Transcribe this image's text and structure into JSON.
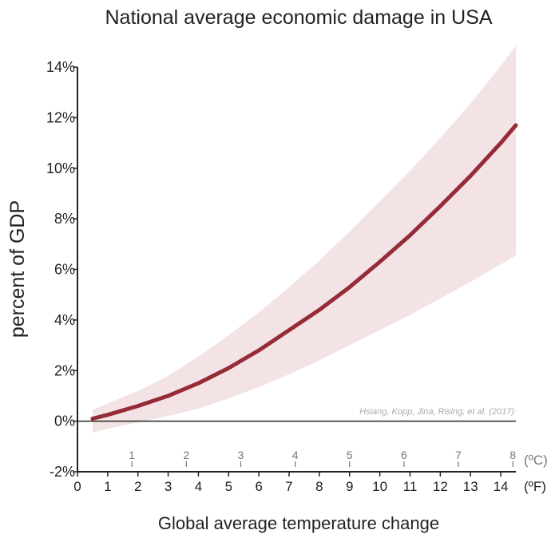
{
  "chart_data": {
    "type": "line",
    "title": "National average economic damage in USA",
    "ylabel": "percent of GDP",
    "xlabel": "Global average temperature change",
    "source": "Hsiang, Kopp, Jina, Rising, et al. (2017)",
    "ylim": [
      -2,
      14
    ],
    "xlim": [
      0,
      14.5
    ],
    "y_ticks": [
      -2,
      0,
      2,
      4,
      6,
      8,
      10,
      12,
      14
    ],
    "y_tick_labels": [
      "-2%",
      "0%",
      "2%",
      "4%",
      "6%",
      "8%",
      "10%",
      "12%",
      "14%"
    ],
    "x_ticks_F": [
      0,
      1,
      2,
      3,
      4,
      5,
      6,
      7,
      8,
      9,
      10,
      11,
      12,
      13,
      14
    ],
    "x_tick_labels_F": [
      "0",
      "1",
      "2",
      "3",
      "4",
      "5",
      "6",
      "7",
      "8",
      "9",
      "10",
      "11",
      "12",
      "13",
      "14"
    ],
    "unit_F": "(ºF)",
    "x_ticks_C": [
      1,
      2,
      3,
      4,
      5,
      6,
      7,
      8
    ],
    "x_tick_labels_C": [
      "1",
      "2",
      "3",
      "4",
      "5",
      "6",
      "7",
      "8"
    ],
    "unit_C": "(ºC)",
    "grid": false,
    "colors": {
      "line": "#962b38",
      "band": "#f3e3e5",
      "zero_line": "#222222",
      "celsius": "#777777"
    },
    "series": [
      {
        "type": "line",
        "x": [
          0.5,
          1,
          2,
          3,
          4,
          5,
          6,
          7,
          8,
          9,
          10,
          11,
          12,
          13,
          14,
          14.5
        ],
        "values": [
          0.1,
          0.25,
          0.6,
          1.0,
          1.5,
          2.1,
          2.8,
          3.6,
          4.4,
          5.3,
          6.3,
          7.35,
          8.5,
          9.7,
          11.0,
          11.7
        ]
      },
      {
        "type": "band",
        "x": [
          0.5,
          1,
          2,
          3,
          4,
          5,
          6,
          7,
          8,
          9,
          10,
          11,
          12,
          13,
          14,
          14.5
        ],
        "upper": [
          0.45,
          0.7,
          1.2,
          1.8,
          2.55,
          3.4,
          4.3,
          5.3,
          6.35,
          7.5,
          8.7,
          9.9,
          11.2,
          12.55,
          14.05,
          14.85
        ],
        "lower": [
          -0.45,
          -0.3,
          -0.05,
          0.2,
          0.5,
          0.9,
          1.35,
          1.85,
          2.4,
          3.0,
          3.6,
          4.2,
          4.85,
          5.5,
          6.2,
          6.55
        ]
      }
    ]
  }
}
